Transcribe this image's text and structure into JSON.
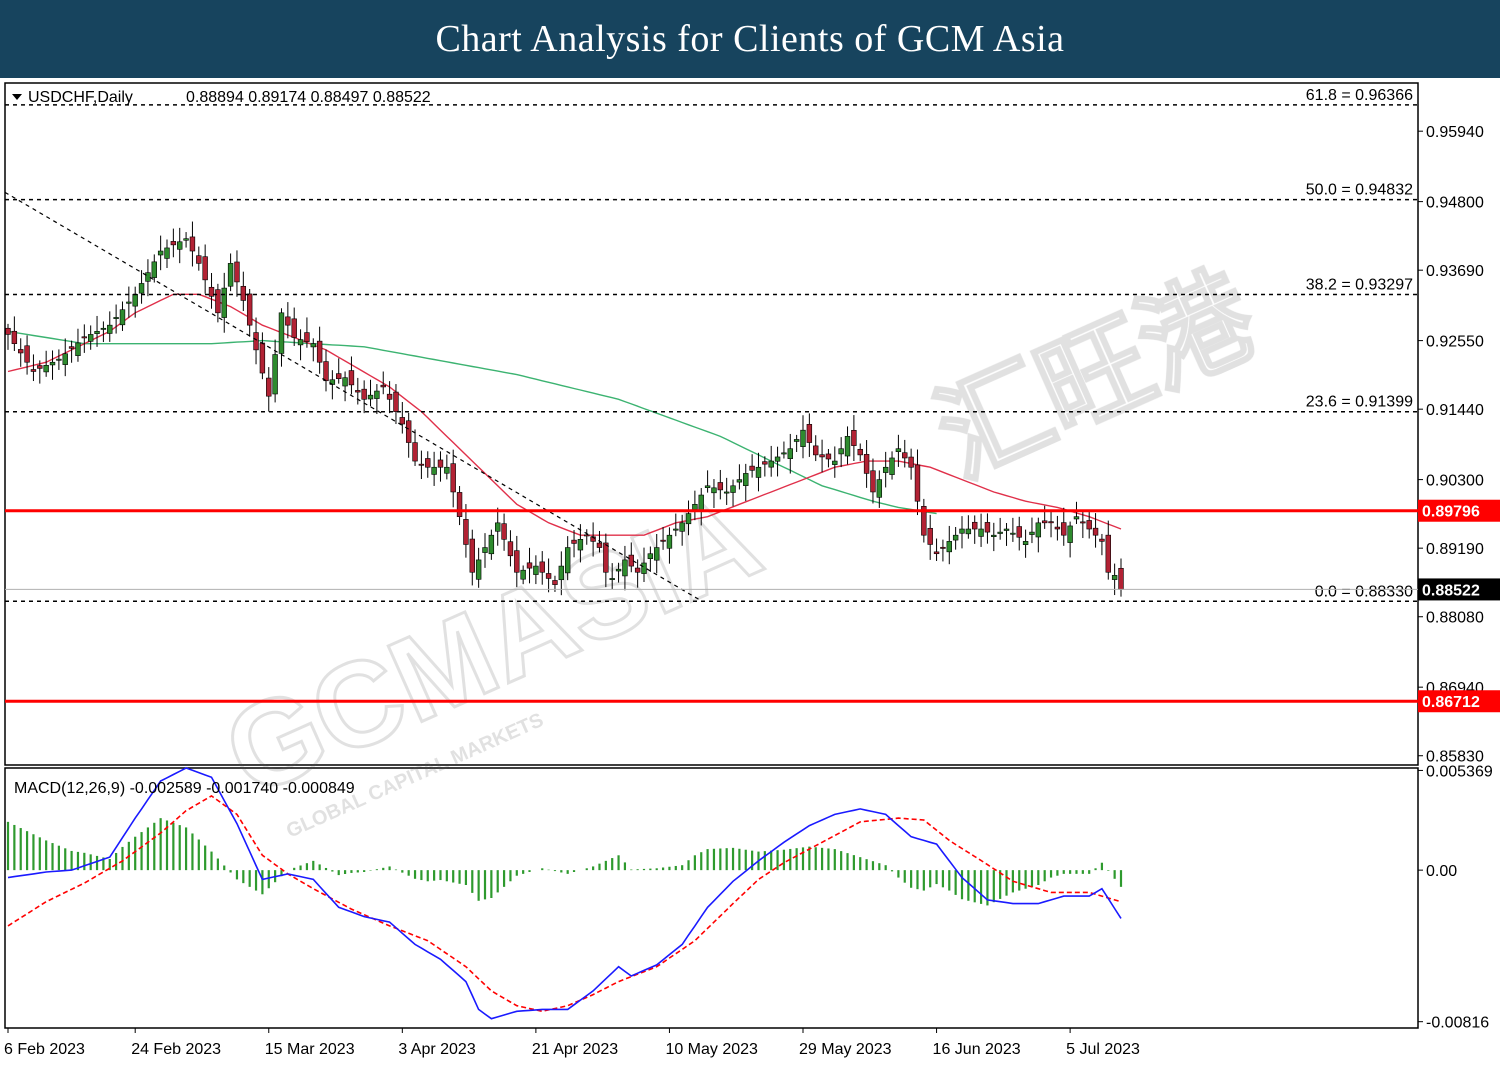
{
  "banner": {
    "title": "Chart Analysis for Clients of GCM Asia"
  },
  "watermark": {
    "brand": "GCMASIA",
    "chinese": "汇旺港",
    "tagline": "GLOBAL CAPITAL MARKETS"
  },
  "chart_data": {
    "type": "candlestick",
    "symbol_label": "USDCHF,Daily",
    "ohlc_label": "0.88894 0.89174 0.88497 0.88522",
    "ylim": [
      0.8568,
      0.9672
    ],
    "price_ticks": [
      "0.95940",
      "0.94800",
      "0.93690",
      "0.92550",
      "0.91440",
      "0.90300",
      "0.89190",
      "0.88080",
      "0.86940",
      "0.85830"
    ],
    "x_tick_labels": [
      "6 Feb 2023",
      "24 Feb 2023",
      "15 Mar 2023",
      "3 Apr 2023",
      "21 Apr 2023",
      "10 May 2023",
      "29 May 2023",
      "16 Jun 2023",
      "5 Jul 2023"
    ],
    "fibonacci": [
      {
        "label": "61.8 = 0.96366",
        "value": 0.96366
      },
      {
        "label": "50.0 = 0.94832",
        "value": 0.94832
      },
      {
        "label": "38.2 = 0.93297",
        "value": 0.93297
      },
      {
        "label": "23.6 = 0.91399",
        "value": 0.91399
      },
      {
        "label": "0.0 = 0.88330",
        "value": 0.8833
      }
    ],
    "support_resistance": [
      {
        "label": "0.89796",
        "value": 0.89796,
        "color": "#ff0000"
      },
      {
        "label": "0.86712",
        "value": 0.86712,
        "color": "#ff0000"
      }
    ],
    "current_price": {
      "label": "0.88522",
      "value": 0.88522
    },
    "close_anchors": [
      [
        0,
        0.9265
      ],
      [
        4,
        0.9205
      ],
      [
        8,
        0.9225
      ],
      [
        12,
        0.926
      ],
      [
        16,
        0.928
      ],
      [
        20,
        0.933
      ],
      [
        24,
        0.94
      ],
      [
        28,
        0.942
      ],
      [
        30,
        0.938
      ],
      [
        33,
        0.93
      ],
      [
        35,
        0.938
      ],
      [
        37,
        0.932
      ],
      [
        39,
        0.924
      ],
      [
        41,
        0.9165
      ],
      [
        43,
        0.93
      ],
      [
        45,
        0.926
      ],
      [
        48,
        0.925
      ],
      [
        50,
        0.919
      ],
      [
        53,
        0.9195
      ],
      [
        56,
        0.916
      ],
      [
        59,
        0.918
      ],
      [
        62,
        0.912
      ],
      [
        64,
        0.906
      ],
      [
        66,
        0.905
      ],
      [
        69,
        0.905
      ],
      [
        71,
        0.897
      ],
      [
        73,
        0.888
      ],
      [
        75,
        0.892
      ],
      [
        77,
        0.896
      ],
      [
        80,
        0.888
      ],
      [
        83,
        0.889
      ],
      [
        86,
        0.886
      ],
      [
        88,
        0.892
      ],
      [
        91,
        0.894
      ],
      [
        93,
        0.892
      ],
      [
        94,
        0.888
      ],
      [
        95,
        0.887
      ],
      [
        97,
        0.89
      ],
      [
        99,
        0.888
      ],
      [
        101,
        0.891
      ],
      [
        104,
        0.894
      ],
      [
        106,
        0.896
      ],
      [
        108,
        0.899
      ],
      [
        110,
        0.902
      ],
      [
        113,
        0.901
      ],
      [
        116,
        0.904
      ],
      [
        120,
        0.906
      ],
      [
        123,
        0.908
      ],
      [
        125,
        0.911
      ],
      [
        127,
        0.907
      ],
      [
        130,
        0.906
      ],
      [
        132,
        0.91
      ],
      [
        134,
        0.907
      ],
      [
        136,
        0.901
      ],
      [
        138,
        0.905
      ],
      [
        140,
        0.908
      ],
      [
        142,
        0.905
      ],
      [
        144,
        0.894
      ],
      [
        146,
        0.891
      ],
      [
        148,
        0.893
      ],
      [
        150,
        0.895
      ],
      [
        153,
        0.895
      ],
      [
        155,
        0.894
      ],
      [
        157,
        0.895
      ],
      [
        160,
        0.893
      ],
      [
        162,
        0.896
      ],
      [
        164,
        0.896
      ],
      [
        166,
        0.894
      ],
      [
        168,
        0.897
      ],
      [
        170,
        0.895
      ],
      [
        172,
        0.893
      ],
      [
        173,
        0.888
      ],
      [
        174,
        0.8875
      ],
      [
        175,
        0.88522
      ]
    ],
    "ma_red_anchors": [
      [
        0,
        0.9205
      ],
      [
        6,
        0.922
      ],
      [
        10,
        0.924
      ],
      [
        16,
        0.927
      ],
      [
        20,
        0.93
      ],
      [
        26,
        0.933
      ],
      [
        30,
        0.933
      ],
      [
        35,
        0.931
      ],
      [
        40,
        0.928
      ],
      [
        45,
        0.926
      ],
      [
        50,
        0.924
      ],
      [
        55,
        0.921
      ],
      [
        60,
        0.918
      ],
      [
        65,
        0.914
      ],
      [
        70,
        0.909
      ],
      [
        75,
        0.904
      ],
      [
        80,
        0.899
      ],
      [
        85,
        0.896
      ],
      [
        90,
        0.894
      ],
      [
        95,
        0.894
      ],
      [
        100,
        0.894
      ],
      [
        105,
        0.896
      ],
      [
        110,
        0.897
      ],
      [
        115,
        0.899
      ],
      [
        120,
        0.901
      ],
      [
        125,
        0.903
      ],
      [
        130,
        0.905
      ],
      [
        135,
        0.906
      ],
      [
        140,
        0.906
      ],
      [
        145,
        0.905
      ],
      [
        150,
        0.903
      ],
      [
        155,
        0.901
      ],
      [
        160,
        0.8995
      ],
      [
        165,
        0.8985
      ],
      [
        170,
        0.897
      ],
      [
        175,
        0.895
      ]
    ],
    "ma_green_anchors": [
      [
        0,
        0.927
      ],
      [
        6,
        0.926
      ],
      [
        12,
        0.925
      ],
      [
        18,
        0.925
      ],
      [
        24,
        0.925
      ],
      [
        32,
        0.925
      ],
      [
        40,
        0.9255
      ],
      [
        48,
        0.925
      ],
      [
        56,
        0.9245
      ],
      [
        64,
        0.923
      ],
      [
        72,
        0.9215
      ],
      [
        80,
        0.92
      ],
      [
        88,
        0.918
      ],
      [
        96,
        0.916
      ],
      [
        104,
        0.913
      ],
      [
        112,
        0.91
      ],
      [
        120,
        0.906
      ],
      [
        128,
        0.902
      ],
      [
        136,
        0.8995
      ],
      [
        140,
        0.8985
      ],
      [
        146,
        0.8975
      ]
    ],
    "macd": {
      "label": "MACD(12,26,9) -0.002589 -0.001740 -0.000849",
      "ticks": [
        "0.005369",
        "0.00",
        "-0.00816"
      ],
      "ylim": [
        -0.0085,
        0.0055
      ],
      "main_anchors": [
        [
          0,
          -0.0004
        ],
        [
          6,
          -0.0001
        ],
        [
          10,
          0.0
        ],
        [
          16,
          0.0007
        ],
        [
          20,
          0.0028
        ],
        [
          24,
          0.0048
        ],
        [
          28,
          0.0055
        ],
        [
          32,
          0.005
        ],
        [
          36,
          0.0025
        ],
        [
          40,
          -0.0005
        ],
        [
          44,
          -0.0002
        ],
        [
          48,
          -0.0005
        ],
        [
          52,
          -0.002
        ],
        [
          56,
          -0.0025
        ],
        [
          60,
          -0.0028
        ],
        [
          64,
          -0.004
        ],
        [
          68,
          -0.0048
        ],
        [
          72,
          -0.006
        ],
        [
          74,
          -0.0075
        ],
        [
          76,
          -0.008
        ],
        [
          80,
          -0.0076
        ],
        [
          84,
          -0.0075
        ],
        [
          88,
          -0.0075
        ],
        [
          92,
          -0.0065
        ],
        [
          96,
          -0.0052
        ],
        [
          98,
          -0.0057
        ],
        [
          102,
          -0.0051
        ],
        [
          106,
          -0.004
        ],
        [
          110,
          -0.002
        ],
        [
          114,
          -0.0006
        ],
        [
          118,
          0.0005
        ],
        [
          122,
          0.0015
        ],
        [
          126,
          0.0024
        ],
        [
          130,
          0.003
        ],
        [
          134,
          0.0033
        ],
        [
          138,
          0.003
        ],
        [
          142,
          0.0018
        ],
        [
          146,
          0.0014
        ],
        [
          150,
          -0.0004
        ],
        [
          154,
          -0.0016
        ],
        [
          158,
          -0.0018
        ],
        [
          162,
          -0.0018
        ],
        [
          166,
          -0.0014
        ],
        [
          170,
          -0.0014
        ],
        [
          172,
          -0.001
        ],
        [
          175,
          -0.0026
        ]
      ],
      "signal_anchors": [
        [
          0,
          -0.003
        ],
        [
          6,
          -0.0017
        ],
        [
          12,
          -0.0007
        ],
        [
          18,
          0.0005
        ],
        [
          24,
          0.002
        ],
        [
          28,
          0.0032
        ],
        [
          32,
          0.004
        ],
        [
          36,
          0.003
        ],
        [
          40,
          0.0008
        ],
        [
          44,
          -0.0002
        ],
        [
          48,
          -0.001
        ],
        [
          54,
          -0.0021
        ],
        [
          60,
          -0.003
        ],
        [
          66,
          -0.0038
        ],
        [
          72,
          -0.0052
        ],
        [
          76,
          -0.0065
        ],
        [
          80,
          -0.0073
        ],
        [
          84,
          -0.0076
        ],
        [
          88,
          -0.0073
        ],
        [
          92,
          -0.0067
        ],
        [
          96,
          -0.006
        ],
        [
          102,
          -0.0052
        ],
        [
          108,
          -0.0038
        ],
        [
          114,
          -0.0018
        ],
        [
          118,
          -0.0005
        ],
        [
          122,
          0.0004
        ],
        [
          128,
          0.0015
        ],
        [
          134,
          0.0026
        ],
        [
          140,
          0.0028
        ],
        [
          144,
          0.0027
        ],
        [
          148,
          0.0016
        ],
        [
          154,
          0.0003
        ],
        [
          158,
          -0.0006
        ],
        [
          164,
          -0.0012
        ],
        [
          170,
          -0.0012
        ],
        [
          175,
          -0.0017
        ]
      ]
    }
  }
}
